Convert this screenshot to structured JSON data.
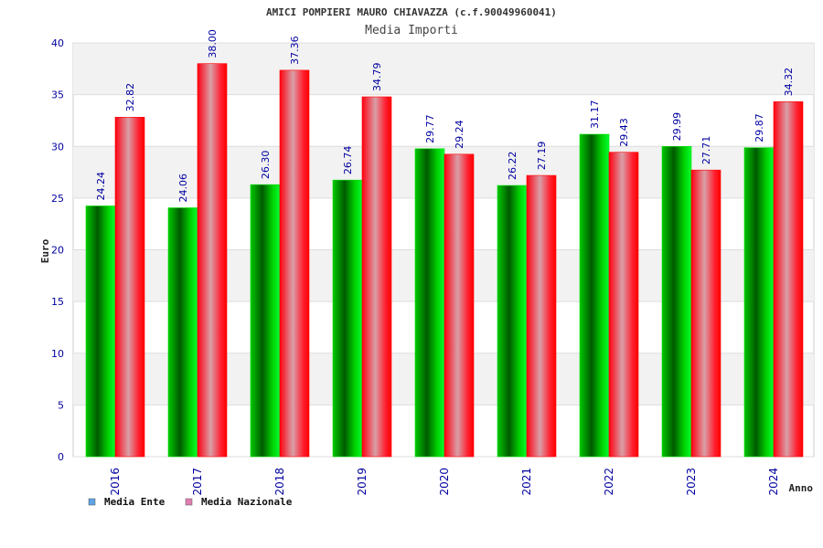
{
  "chart_data": {
    "type": "bar",
    "title": "AMICI POMPIERI MAURO CHIAVAZZA (c.f.90049960041)",
    "subtitle": "Media Importi",
    "xlabel": "Anno",
    "ylabel": "Euro",
    "ylim": [
      0,
      40
    ],
    "yticks": [
      0,
      5,
      10,
      15,
      20,
      25,
      30,
      35,
      40
    ],
    "categories": [
      "2016",
      "2017",
      "2018",
      "2019",
      "2020",
      "2021",
      "2022",
      "2023",
      "2024"
    ],
    "series": [
      {
        "name": "Media Ente",
        "values": [
          24.24,
          24.06,
          26.3,
          26.74,
          29.77,
          26.22,
          31.17,
          29.99,
          29.87
        ]
      },
      {
        "name": "Media Nazionale",
        "values": [
          32.82,
          38.0,
          37.36,
          34.79,
          29.24,
          27.19,
          29.43,
          27.71,
          34.32
        ]
      }
    ],
    "value_labels": [
      [
        "24.24",
        "24.06",
        "26.30",
        "26.74",
        "29.77",
        "26.22",
        "31.17",
        "29.99",
        "29.87"
      ],
      [
        "32.82",
        "38.00",
        "37.36",
        "34.79",
        "29.24",
        "27.19",
        "29.43",
        "27.71",
        "34.32"
      ]
    ],
    "grid": true,
    "legend_position": "bottom-left"
  },
  "legend": [
    {
      "label": "Media Ente",
      "swatch_color": "#5fa3e6"
    },
    {
      "label": "Media Nazionale",
      "swatch_color": "#e07fb0"
    }
  ],
  "colors": {
    "ente_dark": "#006400",
    "ente_light": "#00e000",
    "nazionale_dark": "#ff0000",
    "nazionale_light": "#d9a0a8",
    "axis_text": "#0000a0",
    "value_label": "#0000a0",
    "band": "#f2f2f2",
    "grid": "#dddddd"
  }
}
